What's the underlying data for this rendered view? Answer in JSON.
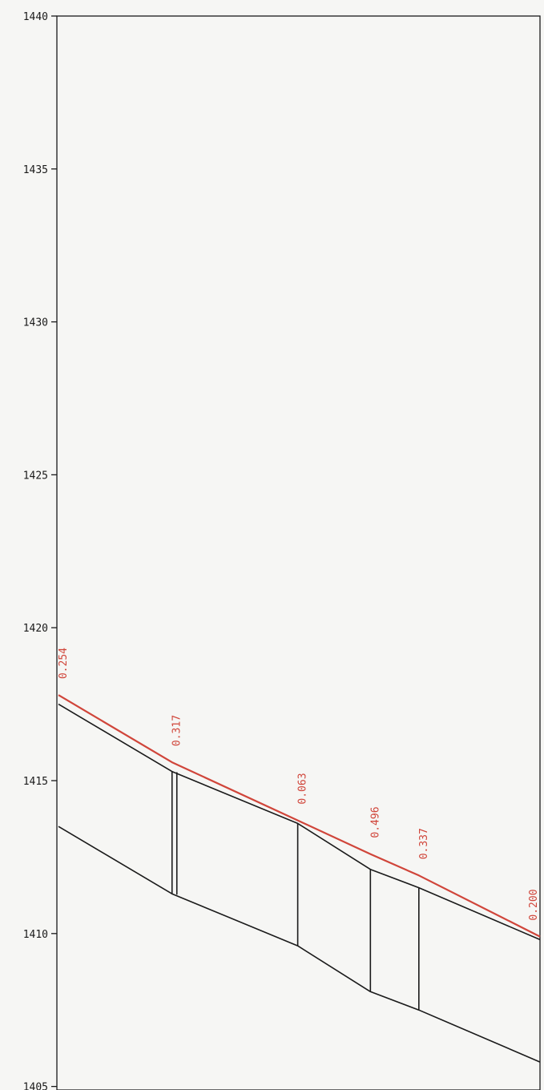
{
  "chart_data": {
    "type": "line",
    "ylim": [
      1405,
      1440
    ],
    "y_ticks": [
      "1440",
      "1435",
      "1430",
      "1425",
      "1420",
      "1415",
      "1410",
      "1405"
    ],
    "grid": false,
    "title": "",
    "xlabel": "",
    "ylabel": "",
    "series": [
      {
        "color": "#d0453a",
        "x": [
          0,
          37.5,
          79,
          103,
          119,
          159
        ],
        "y": [
          1417.8,
          1415.6,
          1413.7,
          1412.6,
          1411.9,
          1409.9
        ]
      },
      {
        "color": "#1a1a1a",
        "x": [
          0,
          37.5,
          79,
          103,
          119,
          159
        ],
        "y": [
          1417.5,
          1415.3,
          1413.6,
          1412.1,
          1411.5,
          1409.8
        ]
      },
      {
        "color": "#1a1a1a",
        "x": [
          0,
          37.5,
          79,
          103,
          119,
          159
        ],
        "y": [
          1413.5,
          1411.3,
          1409.6,
          1408.1,
          1407.5,
          1405.8
        ]
      }
    ],
    "annotations": [
      {
        "text": "0.254",
        "x": 0,
        "y": 1417.8
      },
      {
        "text": "0.317",
        "x": 37.5,
        "y": 1415.6
      },
      {
        "text": "0.063",
        "x": 79,
        "y": 1413.7
      },
      {
        "text": "0.496",
        "x": 103,
        "y": 1412.6
      },
      {
        "text": "0.337",
        "x": 119,
        "y": 1411.9
      },
      {
        "text": "0.200",
        "x": 159,
        "y": 1409.9
      }
    ],
    "colors": {
      "annotation": "#d0453a",
      "structure": "#1a1a1a",
      "background": "#f6f6f4"
    }
  }
}
